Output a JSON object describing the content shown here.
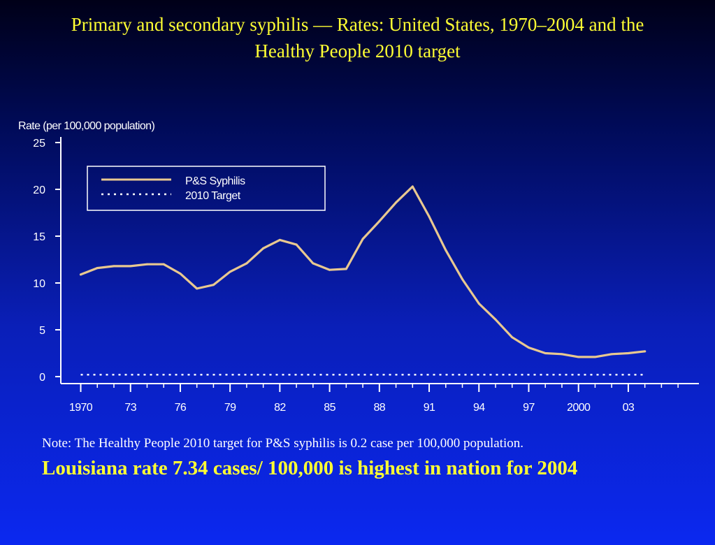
{
  "slide": {
    "title_line1": "Primary and secondary syphilis — Rates: United States, 1970–2004 and the",
    "title_line2": "Healthy People 2010 target",
    "note": "Note: The Healthy People 2010 target for P&S syphilis is 0.2 case per 100,000 population.",
    "highlight": "Louisiana rate 7.34 cases/ 100,000 is highest in nation for 2004"
  },
  "colors": {
    "title": "#ffff33",
    "series_line": "#e8c890",
    "target_line": "#ffffff",
    "axis": "#ffffff"
  },
  "chart_data": {
    "type": "line",
    "ylabel": "Rate (per 100,000 population)",
    "ylim": [
      0,
      25
    ],
    "yticks": [
      0,
      5,
      10,
      15,
      20,
      25
    ],
    "xlim": [
      1970,
      2006
    ],
    "xticks": [
      1970,
      1973,
      1976,
      1979,
      1982,
      1985,
      1988,
      1991,
      1994,
      1997,
      2000,
      2003
    ],
    "xtick_labels": [
      "1970",
      "73",
      "76",
      "79",
      "82",
      "85",
      "88",
      "91",
      "94",
      "97",
      "2000",
      "03"
    ],
    "legend_position": "top-left",
    "grid": false,
    "series": [
      {
        "name": "P&S Syphilis",
        "style": "solid",
        "x": [
          1970,
          1971,
          1972,
          1973,
          1974,
          1975,
          1976,
          1977,
          1978,
          1979,
          1980,
          1981,
          1982,
          1983,
          1984,
          1985,
          1986,
          1987,
          1988,
          1989,
          1990,
          1991,
          1992,
          1993,
          1994,
          1995,
          1996,
          1997,
          1998,
          1999,
          2000,
          2001,
          2002,
          2003,
          2004
        ],
        "values": [
          10.9,
          11.6,
          11.8,
          11.8,
          12.0,
          12.0,
          11.0,
          9.4,
          9.8,
          11.2,
          12.1,
          13.7,
          14.6,
          14.1,
          12.1,
          11.4,
          11.5,
          14.7,
          16.6,
          18.6,
          20.3,
          17.1,
          13.5,
          10.4,
          7.8,
          6.1,
          4.2,
          3.1,
          2.5,
          2.4,
          2.1,
          2.1,
          2.4,
          2.5,
          2.7
        ]
      },
      {
        "name": "2010 Target",
        "style": "dotted",
        "x": [
          1970,
          2004
        ],
        "values": [
          0.2,
          0.2
        ]
      }
    ]
  }
}
